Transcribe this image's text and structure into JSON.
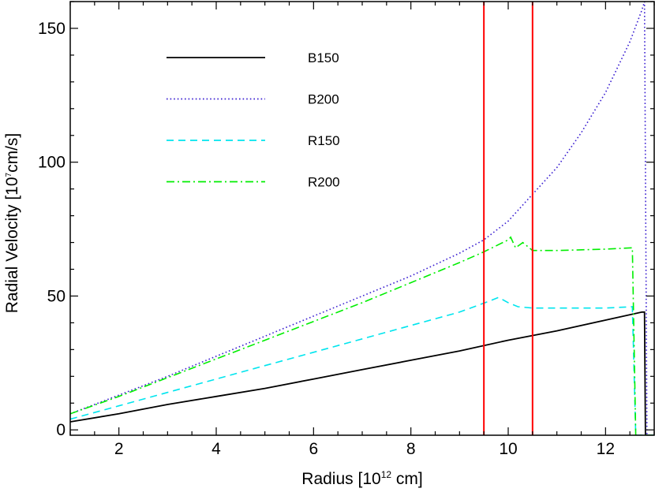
{
  "chart_data": {
    "type": "line",
    "xlabel_main": "Radius [10",
    "xlabel_sup": "12",
    "xlabel_tail": " cm]",
    "ylabel_main": "Radial Velocity [10",
    "ylabel_sup": "7",
    "ylabel_tail": "cm/s]",
    "xlim": [
      1.0,
      13.0
    ],
    "ylim": [
      -2,
      160
    ],
    "xticks": [
      2,
      4,
      6,
      8,
      10,
      12
    ],
    "yticks": [
      0,
      50,
      100,
      150
    ],
    "legend_position": "top-left",
    "vlines": [
      {
        "x": 9.5,
        "color": "#ff0000"
      },
      {
        "x": 10.5,
        "color": "#ff0000"
      }
    ],
    "series": [
      {
        "name": "B150",
        "color": "#000000",
        "dash": "solid",
        "points": [
          [
            1.0,
            3
          ],
          [
            2.0,
            6
          ],
          [
            3.0,
            9.5
          ],
          [
            4.0,
            12.5
          ],
          [
            5.0,
            15.5
          ],
          [
            6.0,
            19
          ],
          [
            7.0,
            22.5
          ],
          [
            8.0,
            26
          ],
          [
            9.0,
            29.5
          ],
          [
            10.0,
            33.5
          ],
          [
            11.0,
            37
          ],
          [
            12.0,
            41
          ],
          [
            12.75,
            44
          ],
          [
            12.8,
            44
          ],
          [
            12.82,
            -2
          ],
          [
            13.0,
            -2
          ]
        ]
      },
      {
        "name": "B200",
        "color": "#3a1fd1",
        "dash": "dotted",
        "points": [
          [
            1.0,
            6
          ],
          [
            2.0,
            13
          ],
          [
            3.0,
            20
          ],
          [
            4.0,
            27.5
          ],
          [
            5.0,
            35
          ],
          [
            6.0,
            42.5
          ],
          [
            7.0,
            50
          ],
          [
            8.0,
            57.5
          ],
          [
            9.0,
            66
          ],
          [
            9.5,
            71
          ],
          [
            10.0,
            78
          ],
          [
            10.5,
            88
          ],
          [
            11.0,
            98
          ],
          [
            11.5,
            111
          ],
          [
            12.0,
            126
          ],
          [
            12.5,
            145
          ],
          [
            12.75,
            157
          ],
          [
            12.8,
            160
          ],
          [
            12.85,
            -2
          ],
          [
            13.0,
            -2
          ]
        ]
      },
      {
        "name": "R150",
        "color": "#00e5ee",
        "dash": "dashed",
        "points": [
          [
            1.0,
            4
          ],
          [
            2.0,
            9
          ],
          [
            3.0,
            14
          ],
          [
            4.0,
            19
          ],
          [
            5.0,
            24
          ],
          [
            6.0,
            29
          ],
          [
            7.0,
            34
          ],
          [
            8.0,
            39
          ],
          [
            9.0,
            44
          ],
          [
            9.6,
            48
          ],
          [
            9.8,
            49.5
          ],
          [
            10.0,
            47.5
          ],
          [
            10.2,
            46
          ],
          [
            10.5,
            45.5
          ],
          [
            11.0,
            45.5
          ],
          [
            12.0,
            45.5
          ],
          [
            12.55,
            46
          ],
          [
            12.62,
            -2
          ],
          [
            13.0,
            -2
          ]
        ]
      },
      {
        "name": "R200",
        "color": "#00ee00",
        "dash": "dashdot",
        "points": [
          [
            1.0,
            6
          ],
          [
            2.0,
            12.5
          ],
          [
            3.0,
            19.5
          ],
          [
            4.0,
            26.5
          ],
          [
            5.0,
            33.5
          ],
          [
            6.0,
            40.5
          ],
          [
            7.0,
            47.5
          ],
          [
            8.0,
            55
          ],
          [
            9.0,
            62.5
          ],
          [
            9.5,
            66.5
          ],
          [
            10.0,
            71
          ],
          [
            10.05,
            72
          ],
          [
            10.15,
            68
          ],
          [
            10.3,
            70
          ],
          [
            10.5,
            67
          ],
          [
            11.0,
            67
          ],
          [
            12.0,
            67.5
          ],
          [
            12.55,
            68
          ],
          [
            12.62,
            -2
          ],
          [
            13.0,
            -2
          ]
        ]
      }
    ]
  }
}
